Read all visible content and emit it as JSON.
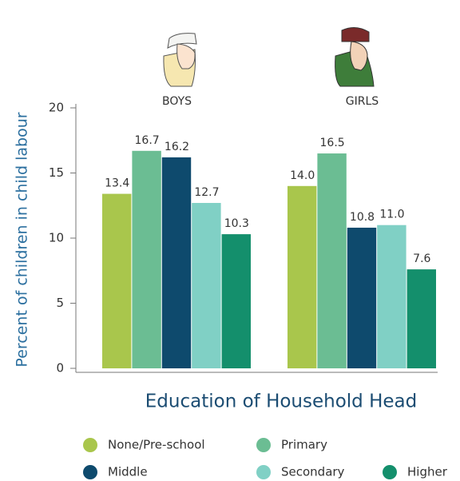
{
  "chart_data": {
    "type": "bar",
    "y_label": "Percent of children in child labour",
    "x_label": "Education of Household Head",
    "categories": [
      "BOYS",
      "GIRLS"
    ],
    "series": [
      {
        "name": "None/Pre-school",
        "color": "#a9c64c",
        "values": [
          13.4,
          14.0
        ],
        "value_labels": [
          "13.4",
          "14.0"
        ]
      },
      {
        "name": "Primary",
        "color": "#6bbd93",
        "values": [
          16.7,
          16.5
        ],
        "value_labels": [
          "16.7",
          "16.5"
        ]
      },
      {
        "name": "Middle",
        "color": "#0e4a6d",
        "values": [
          16.2,
          10.8
        ],
        "value_labels": [
          "16.2",
          "10.8"
        ]
      },
      {
        "name": "Secondary",
        "color": "#80d0c5",
        "values": [
          12.7,
          11.0
        ],
        "value_labels": [
          "12.7",
          "11.0"
        ]
      },
      {
        "name": "Higher",
        "color": "#148f6c",
        "values": [
          10.3,
          7.6
        ],
        "value_labels": [
          "10.3",
          "7.6"
        ]
      }
    ],
    "ylim": [
      0,
      20
    ],
    "yticks": [
      0,
      5,
      10,
      15,
      20
    ],
    "grid": false
  }
}
